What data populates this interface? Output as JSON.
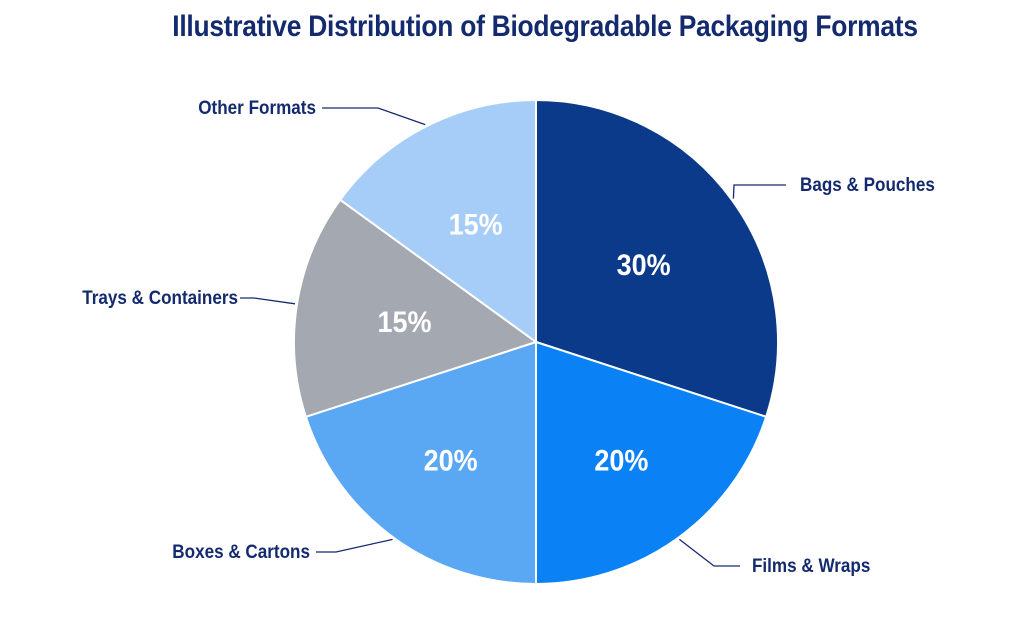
{
  "chart_data": {
    "type": "pie",
    "title": "Illustrative Distribution of Biodegradable Packaging Formats",
    "slices": [
      {
        "label": "Bags & Pouches",
        "value": 30,
        "value_label": "30%",
        "color": "#0b3a8a"
      },
      {
        "label": "Films & Wraps",
        "value": 20,
        "value_label": "20%",
        "color": "#0a82f6"
      },
      {
        "label": "Boxes & Cartons",
        "value": 20,
        "value_label": "20%",
        "color": "#5aa7f4"
      },
      {
        "label": "Trays & Containers",
        "value": 15,
        "value_label": "15%",
        "color": "#a4a8b0"
      },
      {
        "label": "Other Formats",
        "value": 15,
        "value_label": "15%",
        "color": "#a6cdf8"
      }
    ],
    "start_angle_deg": 0,
    "direction": "clockwise",
    "legend": "none"
  }
}
